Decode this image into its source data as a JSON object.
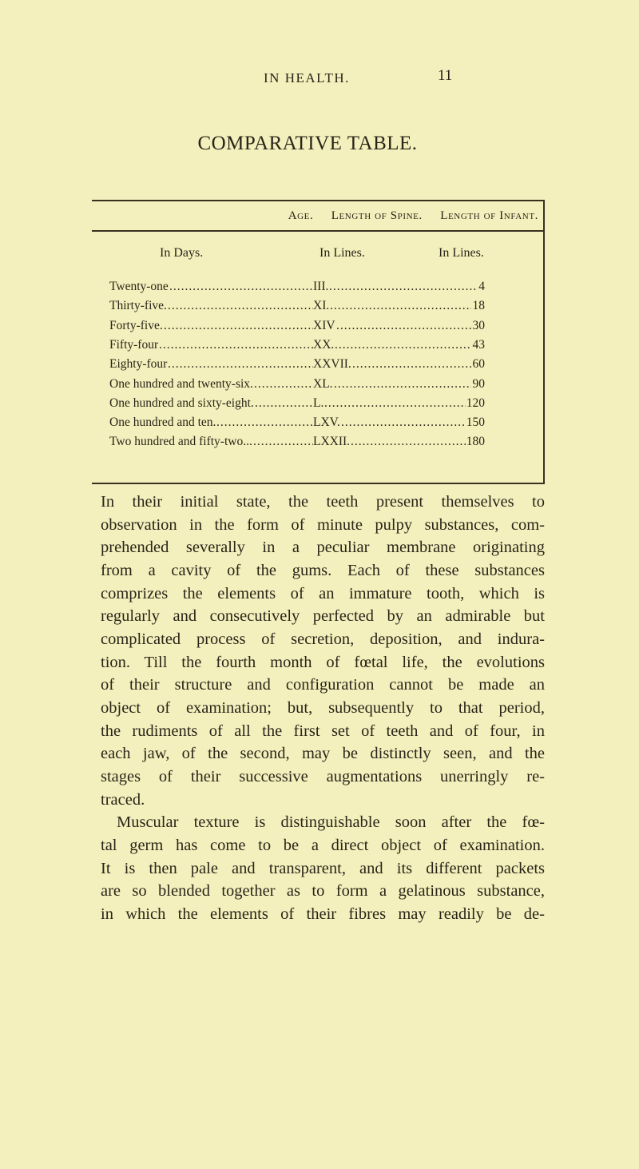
{
  "running_head": "IN HEALTH.",
  "page_number": "11",
  "title": "COMPARATIVE TABLE.",
  "table": {
    "headers": [
      "Age.",
      "Length of Spine.",
      "Length of Infant."
    ],
    "units": [
      "In Days.",
      "In Lines.",
      "In Lines."
    ],
    "rows": [
      [
        "Twenty-one",
        "III.",
        "4"
      ],
      [
        "Thirty-five.",
        "XI.",
        "18"
      ],
      [
        "Forty-five.",
        "XIV",
        "30"
      ],
      [
        "Fifty-four",
        "XX.",
        "43"
      ],
      [
        "Eighty-four",
        "XXVII.",
        "60"
      ],
      [
        "One hundred and twenty-six.",
        "XL.",
        "90"
      ],
      [
        "One hundred and sixty-eight.",
        "L.",
        "120"
      ],
      [
        "One hundred and ten.",
        "LXV.",
        "150"
      ],
      [
        "Two hundred and fifty-two...",
        "LXXII.",
        "180"
      ]
    ]
  },
  "body_lines": [
    "In their initial state, the teeth present themselves to",
    "observation in the form of minute pulpy substances, com-",
    "prehended severally in a peculiar membrane originating",
    "from a cavity of the gums. Each of these substances",
    "comprizes the elements of an immature tooth, which is",
    "regularly and consecutively perfected by an admirable but",
    "complicated process of secretion, deposition, and indura-",
    "tion. Till the fourth month of fœtal life, the evolutions",
    "of their structure and configuration cannot be made an",
    "object of examination; but, subsequently to that period,",
    "the rudiments of all the first set of teeth and of four, in",
    "each jaw, of the second, may be distinctly seen, and the",
    "stages of their successive augmentations unerringly re-",
    "traced.",
    "Muscular texture is distinguishable soon after the fœ-",
    "tal germ has come to be a direct object of examination.",
    "It is then pale and transparent, and its different packets",
    "are so blended together as to form a gelatinous substance,",
    "in which the elements of their fibres may readily be de-"
  ]
}
